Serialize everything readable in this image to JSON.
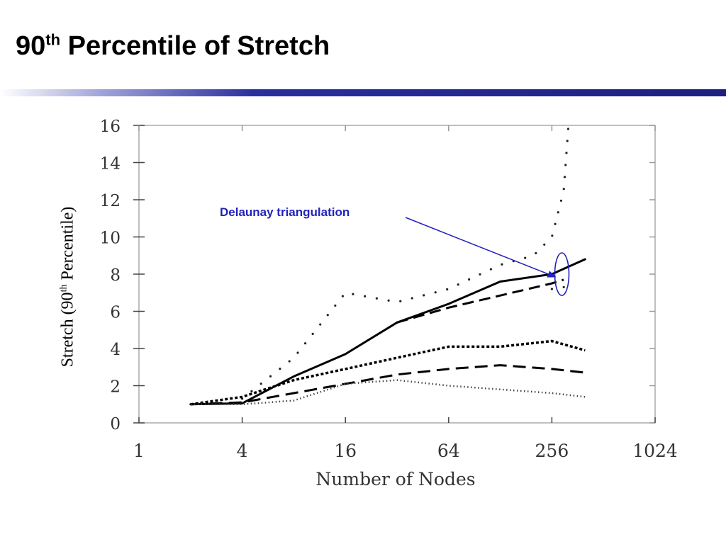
{
  "slide": {
    "title_main": "90",
    "title_sup": "th",
    "title_rest": " Percentile of Stretch"
  },
  "chart_data": {
    "type": "line",
    "title": "",
    "xlabel": "Number of Nodes",
    "ylabel_pre": "Stretch (90",
    "ylabel_sup": "th",
    "ylabel_post": " Percentile)",
    "x_scale": "log2",
    "xlim": [
      1,
      1024
    ],
    "ylim": [
      0,
      16
    ],
    "x_ticks": [
      1,
      4,
      16,
      64,
      256,
      1024
    ],
    "x_tick_labels": [
      "1",
      "4",
      "16",
      "64",
      "256",
      "1024"
    ],
    "y_ticks": [
      0,
      2,
      4,
      6,
      8,
      10,
      12,
      14,
      16
    ],
    "y_tick_labels": [
      "0",
      "2",
      "4",
      "6",
      "8",
      "10",
      "12",
      "14",
      "16"
    ],
    "grid": false,
    "series": [
      {
        "style": "solid",
        "x": [
          2,
          4,
          8,
          16,
          32,
          64,
          128,
          256,
          400
        ],
        "y": [
          1.0,
          1.05,
          2.5,
          3.7,
          5.4,
          6.4,
          7.6,
          8.0,
          8.8
        ]
      },
      {
        "style": "long-dash",
        "x": [
          32,
          64,
          256,
          300
        ],
        "y": [
          5.4,
          6.2,
          7.5,
          7.7
        ]
      },
      {
        "style": "sparse-dot",
        "x": [
          4,
          8,
          16,
          32,
          64,
          128,
          200,
          256,
          300,
          320
        ],
        "y": [
          1.3,
          3.5,
          7.0,
          6.5,
          7.2,
          8.5,
          9.0,
          10.0,
          12.5,
          16.0
        ]
      },
      {
        "style": "sparse-dot",
        "x": [
          256,
          300,
          320
        ],
        "y": [
          7.2,
          7.3,
          7.4
        ]
      },
      {
        "style": "short-dash",
        "x": [
          2,
          4,
          8,
          16,
          32,
          64,
          128,
          256,
          400
        ],
        "y": [
          1.0,
          1.4,
          2.3,
          2.9,
          3.5,
          4.1,
          4.1,
          4.4,
          3.9
        ]
      },
      {
        "style": "medium-dash",
        "x": [
          2,
          4,
          8,
          16,
          32,
          64,
          128,
          256,
          400
        ],
        "y": [
          1.0,
          1.1,
          1.6,
          2.1,
          2.6,
          2.9,
          3.1,
          2.9,
          2.7
        ]
      },
      {
        "style": "fine-dot",
        "x": [
          2,
          4,
          8,
          16,
          32,
          64,
          128,
          256,
          400
        ],
        "y": [
          1.0,
          1.0,
          1.2,
          2.1,
          2.3,
          2.0,
          1.8,
          1.6,
          1.4
        ]
      }
    ],
    "annotation": {
      "text": "Delaunay triangulation",
      "color": "#2222bb",
      "points_to": {
        "x": 290,
        "y": 8.0
      }
    }
  }
}
